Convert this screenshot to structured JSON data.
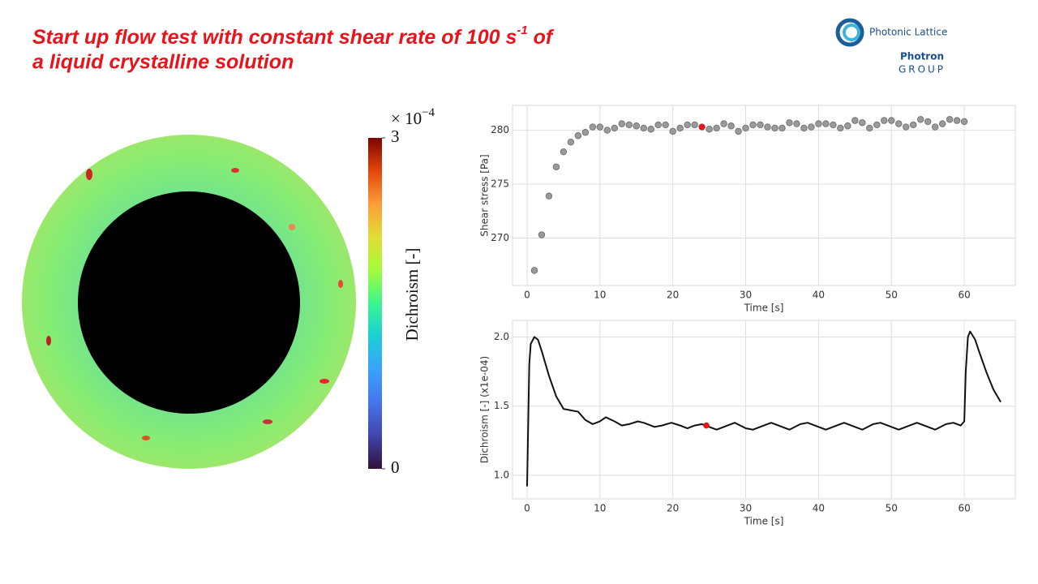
{
  "slide": {
    "title_line1": "Start up flow test with constant shear rate of 100 s",
    "title_superscript": "-1",
    "title_line1_end": " of",
    "title_line2": "a liquid crystalline solution"
  },
  "logo": {
    "brand": "Photonic Lattice",
    "group_name": "Photron",
    "group_word": "GROUP"
  },
  "chart_data": [
    {
      "type": "heatmap",
      "colorbar_label": "Dichroism [-]",
      "scale_label": "× 10",
      "scale_exponent": "−4",
      "clim": [
        0,
        3
      ],
      "ticks": [
        0,
        3
      ]
    },
    {
      "type": "scatter",
      "xlabel": "Time [s]",
      "ylabel": "Shear stress [Pa]",
      "x": [
        1,
        2,
        3,
        4,
        5,
        6,
        7,
        8,
        9,
        10,
        11,
        12,
        13,
        14,
        15,
        16,
        17,
        18,
        19,
        20,
        21,
        22,
        23,
        24,
        25,
        26,
        27,
        28,
        29,
        30,
        31,
        32,
        33,
        34,
        35,
        36,
        37,
        38,
        39,
        40,
        41,
        42,
        43,
        44,
        45,
        46,
        47,
        48,
        49,
        50,
        51,
        52,
        53,
        54,
        55,
        56,
        57,
        58,
        59,
        60
      ],
      "series": [
        {
          "color": "#9a9a9a",
          "values": [
            267.0,
            270.3,
            273.9,
            276.6,
            278.0,
            278.9,
            279.5,
            279.8,
            280.3,
            280.3,
            280.0,
            280.2,
            280.6,
            280.5,
            280.4,
            280.2,
            280.1,
            280.5,
            280.5,
            279.9,
            280.2,
            280.5,
            280.5,
            280.3,
            280.1,
            280.2,
            280.6,
            280.4,
            279.9,
            280.2,
            280.5,
            280.5,
            280.3,
            280.2,
            280.2,
            280.7,
            280.6,
            280.2,
            280.3,
            280.6,
            280.6,
            280.5,
            280.2,
            280.4,
            280.9,
            280.7,
            280.2,
            280.5,
            280.9,
            280.9,
            280.6,
            280.3,
            280.5,
            281.0,
            280.8,
            280.3,
            280.6,
            281.0,
            280.9,
            280.8
          ]
        }
      ],
      "highlight": {
        "x": 24,
        "y": 280.3,
        "color": "#e8141b"
      },
      "xlim": [
        -2,
        67
      ],
      "ylim": [
        265.6,
        282.3
      ],
      "xticks": [
        0,
        10,
        20,
        30,
        40,
        50,
        60
      ],
      "yticks": [
        270,
        275,
        280
      ],
      "grid": true
    },
    {
      "type": "line",
      "xlabel": "Time [s]",
      "ylabel": "Dichroism [-] (x1e-04)",
      "x": [
        0,
        0.3,
        0.5,
        1,
        1.5,
        2,
        3,
        4,
        5,
        6,
        7,
        8,
        9,
        10,
        10.8,
        12,
        13,
        14,
        15.2,
        16,
        17.5,
        18.5,
        19.8,
        21,
        22,
        23,
        24,
        25,
        26,
        27,
        28.5,
        30,
        31,
        32.5,
        33.5,
        35,
        36,
        37.5,
        38.5,
        40,
        41,
        42.5,
        43.5,
        45,
        46,
        47.5,
        48.5,
        50,
        51,
        52.5,
        53.5,
        55,
        56,
        57.5,
        58.5,
        59.5,
        60,
        60.2,
        60.5,
        60.8,
        61.5,
        62,
        63,
        64,
        65
      ],
      "series": [
        {
          "color": "#111111",
          "values": [
            0.92,
            1.8,
            1.95,
            2.0,
            1.98,
            1.9,
            1.72,
            1.57,
            1.48,
            1.47,
            1.46,
            1.4,
            1.37,
            1.39,
            1.42,
            1.39,
            1.36,
            1.37,
            1.39,
            1.38,
            1.35,
            1.36,
            1.38,
            1.36,
            1.34,
            1.36,
            1.37,
            1.35,
            1.33,
            1.35,
            1.38,
            1.34,
            1.33,
            1.36,
            1.38,
            1.35,
            1.33,
            1.37,
            1.38,
            1.35,
            1.33,
            1.36,
            1.38,
            1.35,
            1.33,
            1.37,
            1.38,
            1.35,
            1.33,
            1.36,
            1.38,
            1.35,
            1.33,
            1.37,
            1.38,
            1.36,
            1.39,
            1.75,
            2.0,
            2.04,
            1.98,
            1.9,
            1.75,
            1.62,
            1.53
          ]
        }
      ],
      "highlight": {
        "x": 24.6,
        "y": 1.36,
        "color": "#e8141b"
      },
      "xlim": [
        -2,
        67
      ],
      "ylim": [
        0.83,
        2.12
      ],
      "xticks": [
        0,
        10,
        20,
        30,
        40,
        50,
        60
      ],
      "yticks": [
        {
          "value": 1,
          "label": "1.0"
        },
        {
          "value": 1.5,
          "label": "1.5"
        },
        {
          "value": 2,
          "label": "2.0"
        }
      ],
      "grid": true
    }
  ]
}
